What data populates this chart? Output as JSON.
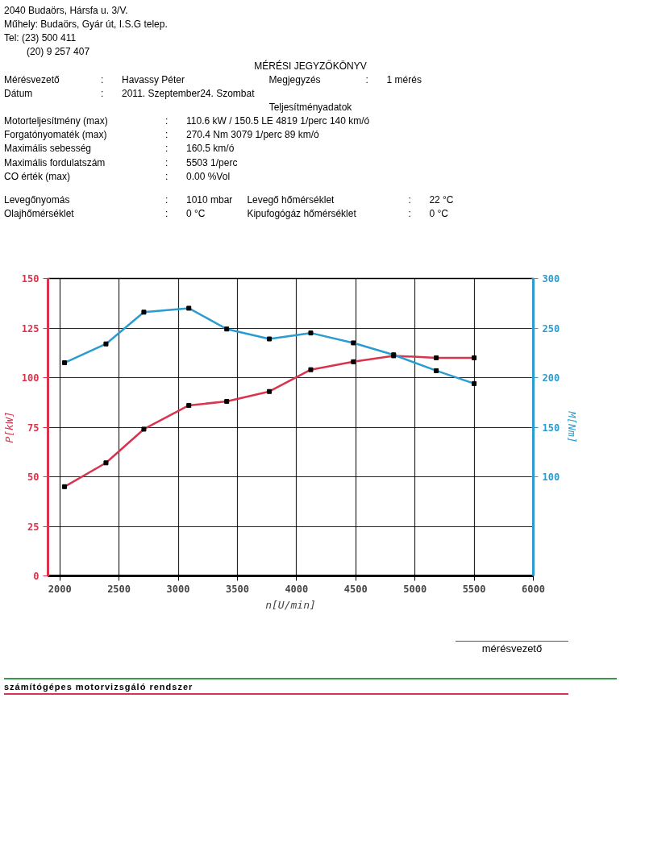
{
  "chart_data": {
    "type": "line",
    "title": "MÉRÉSI JEGYZŐKÖNYV",
    "subtitle": "Teljesítményadatok",
    "xlabel": "n[U/min]",
    "ylabel": "P[kW]",
    "y2label": "M[Nm]",
    "x": [
      2040,
      2390,
      2710,
      3090,
      3410,
      3770,
      4120,
      4480,
      4820,
      5180,
      5500
    ],
    "series": [
      {
        "color": "#d8344e",
        "values": [
          45,
          57,
          74,
          86,
          88,
          93,
          104,
          108,
          111,
          110,
          110
        ]
      },
      {
        "color": "#2a9ccf",
        "axis": "y2",
        "values": [
          215,
          234,
          266,
          270,
          249,
          239,
          245,
          235,
          223,
          207,
          194
        ]
      }
    ],
    "xlim": [
      1900,
      6000
    ],
    "xticks": [
      2000,
      2500,
      3000,
      3500,
      4000,
      4500,
      5000,
      5500,
      6000
    ],
    "ylim": [
      0,
      150
    ],
    "yticks": [
      0,
      25,
      50,
      75,
      100,
      125,
      150
    ],
    "y2lim": [
      0,
      300
    ],
    "y2ticks": [
      100,
      150,
      200,
      250,
      300
    ],
    "grid": true,
    "marker": "square",
    "line_style": "solid",
    "annotations": [
      "2040 Budaörs, Hársfa u. 3/V.",
      "Műhely: Budaörs, Gyár út, I.S.G telep.",
      "Tel: (23) 500 411",
      "(20) 9 257 407",
      "Mérésvezető : Havassy Péter",
      "Megjegyzés : 1 mérés",
      "Dátum : 2011. Szeptember24. Szombat",
      "Motorteljesítmény (max) : 110.6 kW / 150.5 LE 4819 1/perc 140 km/ó",
      "Forgatónyomaték (max) : 270.4 Nm 3079 1/perc 89 km/ó",
      "Maximális sebesség : 160.5 km/ó",
      "Maximális fordulatszám : 5503 1/perc",
      "CO érték (max) : 0.00 %Vol",
      "Levegőnyomás : 1010 mbar",
      "Levegő hőmérséklet : 22 °C",
      "Olajhőmérséklet : 0 °C",
      "Kipufogógáz hőmérséklet : 0 °C",
      "mérésvezető",
      "számítógépes motorvizsgáló rendszer"
    ]
  }
}
